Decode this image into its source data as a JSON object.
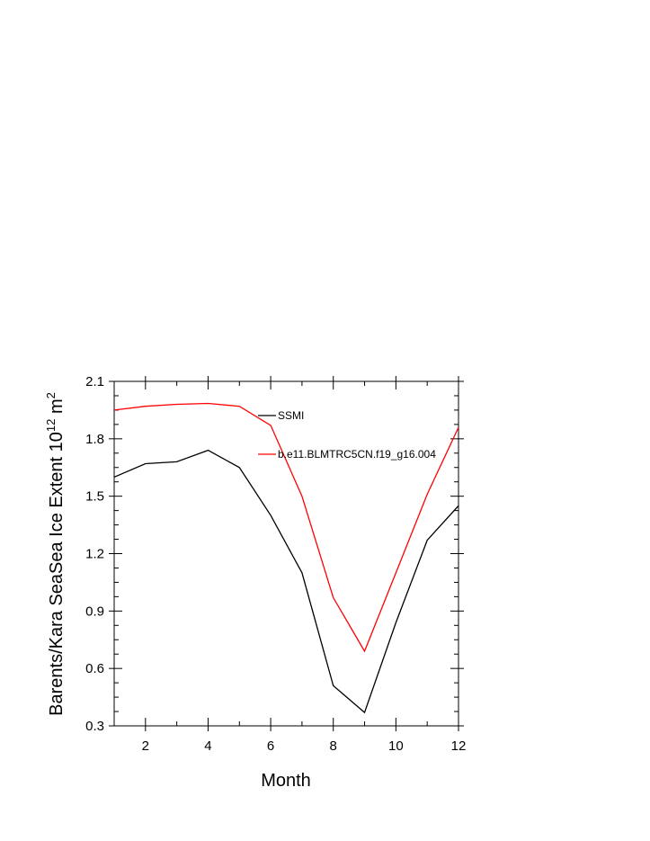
{
  "chart_data": {
    "type": "line",
    "title": "",
    "xlabel": "Month",
    "ylabel_main": "Barents/Kara SeaSea Ice Extent 10",
    "ylabel_sup": "12",
    "ylabel_tail": " m",
    "ylabel_sup2": "2",
    "xlim": [
      1,
      12
    ],
    "ylim": [
      0.3,
      2.1
    ],
    "xticks": [
      2,
      4,
      6,
      8,
      10,
      12
    ],
    "xtick_labels": [
      "2",
      "4",
      "6",
      "8",
      "10",
      "12"
    ],
    "yticks": [
      0.3,
      0.6,
      0.9,
      1.2,
      1.5,
      1.8,
      2.1
    ],
    "ytick_labels": [
      "0.3",
      "0.6",
      "0.9",
      "1.2",
      "1.5",
      "1.8",
      "2.1"
    ],
    "grid": false,
    "legend_position": "top-right (inside)",
    "x": [
      1,
      2,
      3,
      4,
      5,
      6,
      7,
      8,
      9,
      10,
      11,
      12
    ],
    "series": [
      {
        "name": "SSMI",
        "color": "#000000",
        "values": [
          1.6,
          1.67,
          1.68,
          1.74,
          1.65,
          1.4,
          1.1,
          0.51,
          0.37,
          0.84,
          1.27,
          1.45
        ]
      },
      {
        "name": "b.e11.BLMTRC5CN.f19_g16.004",
        "color": "#ff0000",
        "values": [
          1.95,
          1.97,
          1.98,
          1.985,
          1.97,
          1.87,
          1.5,
          0.97,
          0.69,
          1.1,
          1.51,
          1.86
        ]
      }
    ]
  }
}
